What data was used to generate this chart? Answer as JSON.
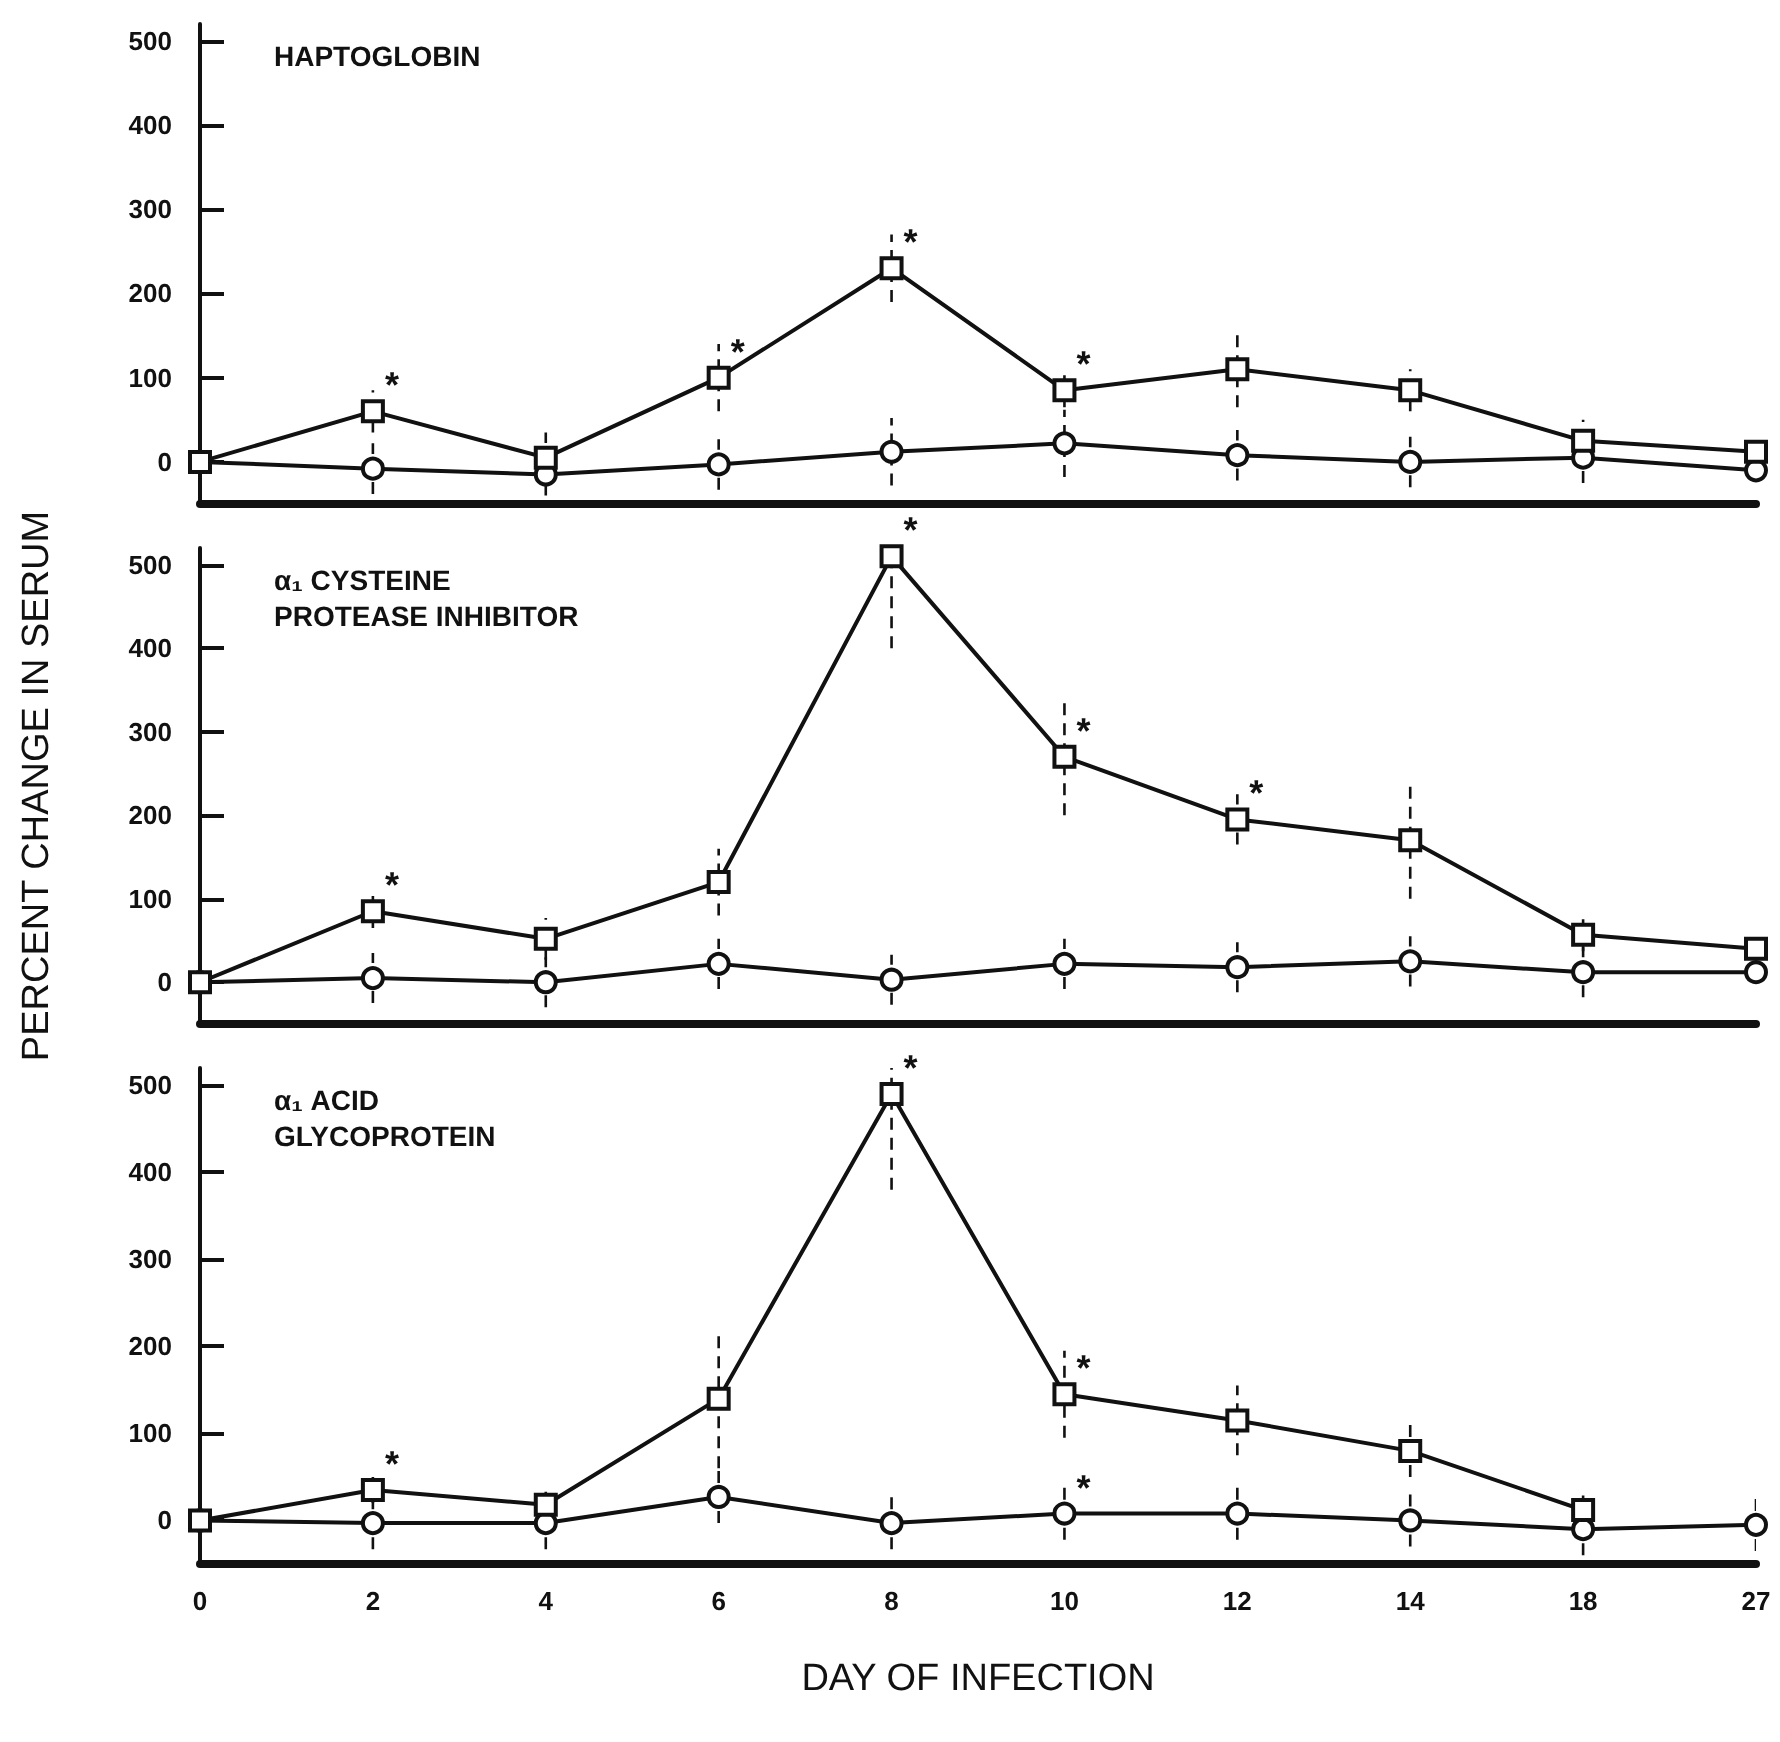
{
  "chart_data": [
    {
      "type": "line",
      "title": "HAPTOGLOBIN",
      "categories": [
        "0",
        "2",
        "4",
        "6",
        "8",
        "10",
        "12",
        "14",
        "18",
        "27"
      ],
      "ylim": [
        -50,
        520
      ],
      "yticks": [
        0,
        100,
        200,
        300,
        400,
        500
      ],
      "tick_labels": "y",
      "series": [
        {
          "color": "#111111",
          "marker": "square",
          "values": [
            0,
            60,
            5,
            100,
            230,
            85,
            110,
            85,
            25,
            12
          ],
          "errors": [
            null,
            25,
            30,
            40,
            40,
            20,
            45,
            25,
            25,
            null
          ]
        },
        {
          "color": "#111111",
          "marker": "circle",
          "values": [
            0,
            -8,
            -15,
            -3,
            12,
            22,
            8,
            0,
            5,
            -10
          ],
          "errors": [
            null,
            30,
            25,
            30,
            40,
            40,
            30,
            30,
            30,
            null
          ]
        }
      ],
      "annotations": [
        {
          "text": "*",
          "x": "2",
          "y": 60
        },
        {
          "text": "*",
          "x": "6",
          "y": 100
        },
        {
          "text": "*",
          "x": "8",
          "y": 230
        },
        {
          "text": "*",
          "x": "10",
          "y": 85
        }
      ]
    },
    {
      "type": "line",
      "title": "α₁ CYSTEINE PROTEASE INHIBITOR",
      "ylabel": "PERCENT CHANGE IN SERUM",
      "categories": [
        "0",
        "2",
        "4",
        "6",
        "8",
        "10",
        "12",
        "14",
        "18",
        "27"
      ],
      "ylim": [
        -50,
        520
      ],
      "yticks": [
        0,
        100,
        200,
        300,
        400,
        500
      ],
      "tick_labels": "y",
      "series": [
        {
          "color": "#111111",
          "marker": "square",
          "values": [
            0,
            85,
            52,
            120,
            510,
            270,
            195,
            170,
            57,
            40
          ],
          "errors": [
            null,
            20,
            25,
            40,
            110,
            70,
            30,
            70,
            20,
            null
          ]
        },
        {
          "color": "#111111",
          "marker": "circle",
          "values": [
            0,
            5,
            0,
            22,
            3,
            22,
            18,
            25,
            12,
            12
          ],
          "errors": [
            null,
            30,
            30,
            30,
            30,
            30,
            30,
            30,
            30,
            null
          ]
        }
      ],
      "annotations": [
        {
          "text": "*",
          "x": "2",
          "y": 85
        },
        {
          "text": "*",
          "x": "8",
          "y": 510
        },
        {
          "text": "*",
          "x": "10",
          "y": 270
        },
        {
          "text": "*",
          "x": "12",
          "y": 195
        }
      ]
    },
    {
      "type": "line",
      "title": "α₁ ACID GLYCOPROTEIN",
      "xlabel": "DAY OF INFECTION",
      "categories": [
        "0",
        "2",
        "4",
        "6",
        "8",
        "10",
        "12",
        "14",
        "18",
        "27"
      ],
      "ylim": [
        -50,
        520
      ],
      "yticks": [
        0,
        100,
        200,
        300,
        400,
        500
      ],
      "series": [
        {
          "color": "#111111",
          "marker": "square",
          "values": [
            0,
            35,
            18,
            140,
            490,
            145,
            115,
            80,
            12,
            null
          ],
          "errors": [
            null,
            15,
            15,
            80,
            110,
            50,
            40,
            30,
            20,
            null
          ]
        },
        {
          "color": "#111111",
          "marker": "circle",
          "values": [
            0,
            -3,
            -3,
            27,
            -3,
            8,
            8,
            0,
            -10,
            -5
          ],
          "errors": [
            null,
            30,
            30,
            30,
            30,
            30,
            30,
            30,
            30,
            30
          ]
        }
      ],
      "annotations": [
        {
          "text": "*",
          "x": "2",
          "y": 35
        },
        {
          "text": "*",
          "x": "8",
          "y": 490
        },
        {
          "text": "*",
          "x": "10",
          "y": 145
        },
        {
          "text": "*",
          "x": "10",
          "y": 8
        }
      ]
    }
  ]
}
